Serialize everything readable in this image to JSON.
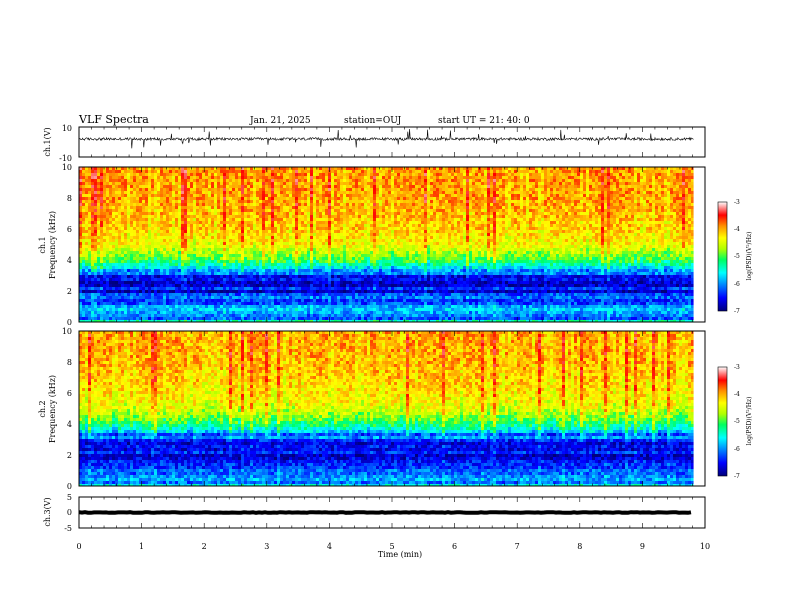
{
  "header": {
    "title": "VLF Spectra",
    "date": "Jan. 21, 2025",
    "station": "station=OUJ",
    "start": "start  UT =   21: 40: 0"
  },
  "chart_data": [
    {
      "type": "line",
      "panel": "ch1-waveform",
      "ylabel": "ch.1(V)",
      "ylim": [
        -10,
        10
      ],
      "yticks": [
        "10",
        "-10"
      ],
      "xlim": [
        0,
        10
      ],
      "data_extent_min": 9.82,
      "baseline": 2,
      "noise_amplitude": 0.9,
      "spike_amplitude": 4,
      "color": "#000000"
    },
    {
      "type": "heatmap",
      "panel": "ch1-spectrogram",
      "ylabel_top": "ch.1",
      "ylabel": "Frequency (kHz)",
      "ylim": [
        0,
        10
      ],
      "yticks": [
        "0",
        "2",
        "4",
        "6",
        "8",
        "10"
      ],
      "xlim": [
        0,
        10
      ],
      "data_extent_min": 9.82,
      "colorbar": {
        "label": "log(PSD)(V²/Hz)",
        "range": [
          -7,
          -3
        ],
        "ticks": [
          "-3",
          "-4",
          "-5",
          "-6",
          "-7"
        ],
        "colors": [
          "#00007a",
          "#0000ff",
          "#0090ff",
          "#00ffff",
          "#00ff60",
          "#b0ff00",
          "#ffff00",
          "#ff9000",
          "#ff0000",
          "#ffffff"
        ]
      },
      "profile_khz": [
        0,
        0.3,
        0.5,
        1.0,
        1.5,
        2.0,
        2.5,
        3.0,
        3.4,
        3.8,
        4.2,
        4.6,
        5.0,
        6.0,
        7.0,
        8.0,
        10.0
      ],
      "profile_level": [
        -5.3,
        -6.1,
        -5.6,
        -5.9,
        -6.2,
        -6.5,
        -6.6,
        -6.3,
        -5.6,
        -5.0,
        -4.6,
        -4.3,
        -4.0,
        -3.8,
        -3.7,
        -3.6,
        -3.55
      ]
    },
    {
      "type": "heatmap",
      "panel": "ch2-spectrogram",
      "ylabel_top": "ch.2",
      "ylabel": "Frequency (kHz)",
      "ylim": [
        0,
        10
      ],
      "yticks": [
        "0",
        "2",
        "4",
        "6",
        "8",
        "10"
      ],
      "xlim": [
        0,
        10
      ],
      "data_extent_min": 9.82,
      "colorbar": {
        "label": "log(PSD)(V²/Hz)",
        "range": [
          -7,
          -3
        ],
        "ticks": [
          "-3",
          "-4",
          "-5",
          "-6",
          "-7"
        ],
        "colors": [
          "#00007a",
          "#0000ff",
          "#0090ff",
          "#00ffff",
          "#00ff60",
          "#b0ff00",
          "#ffff00",
          "#ff9000",
          "#ff0000",
          "#ffffff"
        ]
      },
      "profile_khz": [
        0,
        0.3,
        0.5,
        1.0,
        1.5,
        2.0,
        2.5,
        3.0,
        3.4,
        3.8,
        4.2,
        4.6,
        5.0,
        6.0,
        7.0,
        8.0,
        10.0
      ],
      "profile_level": [
        -5.3,
        -6.1,
        -5.6,
        -5.9,
        -6.2,
        -6.5,
        -6.6,
        -6.3,
        -5.7,
        -5.1,
        -4.7,
        -4.4,
        -4.1,
        -3.9,
        -3.75,
        -3.65,
        -3.6
      ]
    },
    {
      "type": "line",
      "panel": "ch3-waveform",
      "ylabel": "ch.3(V)",
      "ylim": [
        -5,
        5
      ],
      "yticks": [
        "5",
        "0",
        "-5"
      ],
      "xlim": [
        0,
        10
      ],
      "data_extent_min": 9.82,
      "baseline": 0,
      "noise_amplitude": 0.1,
      "spike_amplitude": 0,
      "color": "#000000",
      "xlabel": "Time (min)",
      "xticks": [
        "0",
        "1",
        "2",
        "3",
        "4",
        "5",
        "6",
        "7",
        "8",
        "9",
        "10"
      ]
    }
  ]
}
